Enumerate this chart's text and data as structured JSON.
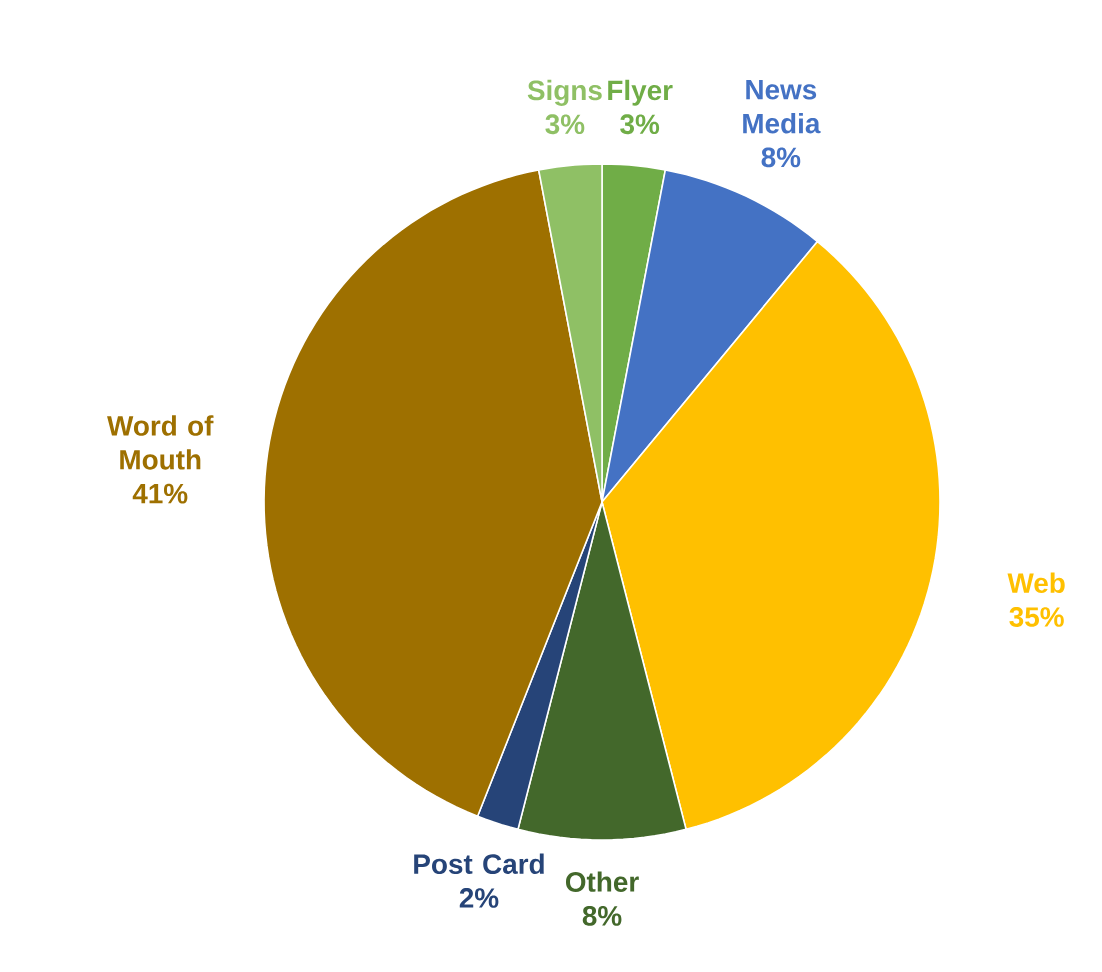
{
  "chart_data": {
    "type": "pie",
    "categories": [
      "Flyer",
      "News Media",
      "Web",
      "Other",
      "Post Card",
      "Word of Mouth",
      "Signs"
    ],
    "values": [
      3,
      8,
      35,
      8,
      2,
      41,
      3
    ],
    "value_labels": [
      "3%",
      "8%",
      "35%",
      "8%",
      "2%",
      "41%",
      "3%"
    ],
    "colors": [
      "#70ad47",
      "#4472c4",
      "#ffc000",
      "#43682b",
      "#264478",
      "#9e7000",
      "#8fc065"
    ]
  }
}
